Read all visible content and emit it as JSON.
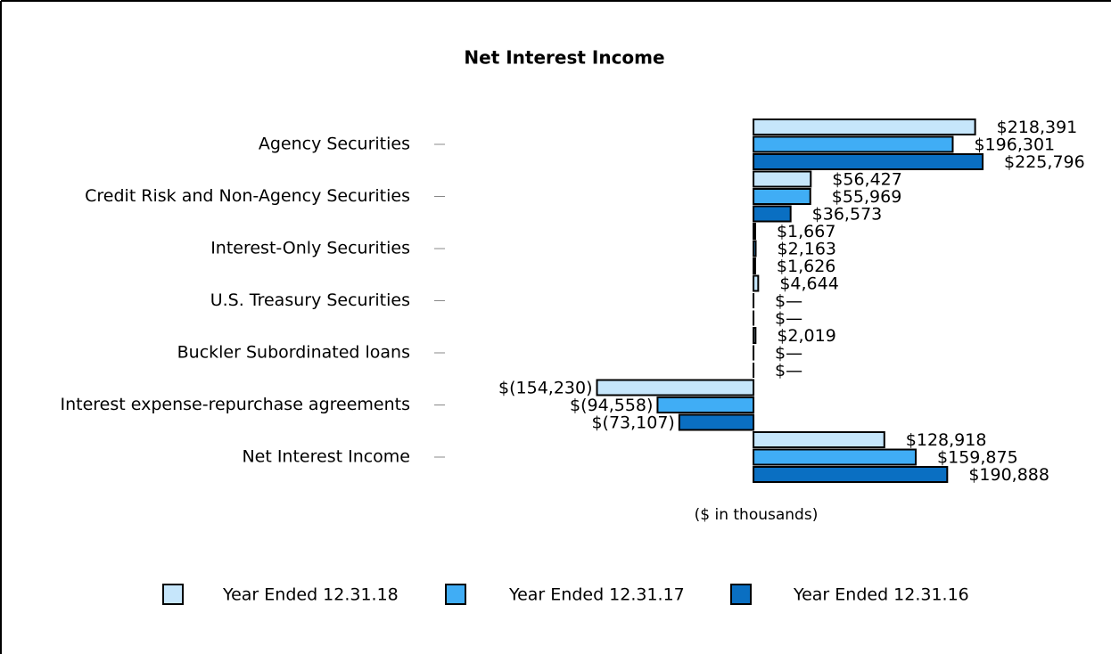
{
  "chart_data": {
    "type": "bar",
    "orientation": "horizontal",
    "title": "Net Interest Income",
    "subtitle": "($ in thousands)",
    "categories": [
      "Agency Securities",
      "Credit Risk and Non-Agency Securities",
      "Interest-Only Securities",
      "U.S. Treasury Securities",
      "Buckler Subordinated loans",
      "Interest expense-repurchase agreements",
      "Net Interest Income"
    ],
    "series": [
      {
        "name": "Year Ended 12.31.18",
        "color": "#c6e6fb",
        "values": [
          218391,
          56427,
          1667,
          4644,
          2019,
          -154230,
          128918
        ],
        "value_labels": [
          "$218,391",
          "$56,427",
          "$1,667",
          "$4,644",
          "$2,019",
          "$(154,230)",
          "$128,918"
        ]
      },
      {
        "name": "Year Ended 12.31.17",
        "color": "#40adf5",
        "values": [
          196301,
          55969,
          2163,
          0,
          0,
          -94558,
          159875
        ],
        "value_labels": [
          "$196,301",
          "$55,969",
          "$2,163",
          "$—",
          "$—",
          "$(94,558)",
          "$159,875"
        ]
      },
      {
        "name": "Year Ended 12.31.16",
        "color": "#0a6fc2",
        "values": [
          225796,
          36573,
          1626,
          0,
          0,
          -73107,
          190888
        ],
        "value_labels": [
          "$225,796",
          "$36,573",
          "$1,626",
          "$—",
          "$—",
          "$(73,107)",
          "$190,888"
        ]
      }
    ],
    "xlim": [
      -300000,
      250000
    ],
    "legend": "bottom"
  }
}
